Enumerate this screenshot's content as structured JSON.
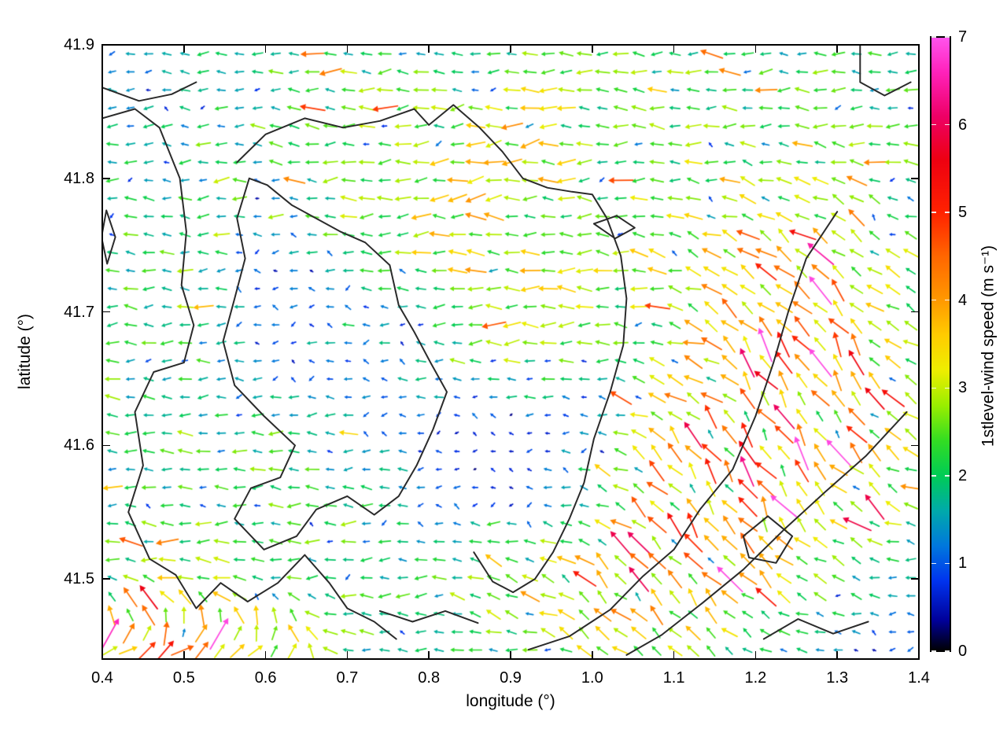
{
  "figure": {
    "background": "#ffffff"
  },
  "chart_data": {
    "type": "quiver",
    "title": "",
    "xlabel": "longitude (°)",
    "ylabel": "latitude (°)",
    "xlim": [
      0.4,
      1.4
    ],
    "ylim": [
      41.44,
      41.9
    ],
    "x_ticks": [
      0.4,
      0.5,
      0.6,
      0.7,
      0.8,
      0.9,
      1.0,
      1.1,
      1.2,
      1.3,
      1.4
    ],
    "x_tick_labels": [
      "0.4",
      "0.5",
      "0.6",
      "0.7",
      "0.8",
      "0.9",
      "1.0",
      "1.1",
      "1.2",
      "1.3",
      "1.4"
    ],
    "y_ticks": [
      41.5,
      41.6,
      41.7,
      41.8,
      41.9
    ],
    "y_tick_labels": [
      "41.5",
      "41.6",
      "41.7",
      "41.8",
      "41.9"
    ],
    "grid": false,
    "frame_color": "#000000",
    "colorbar": {
      "label": "1stlevel-wind speed (m s⁻¹)",
      "min": 0,
      "max": 7,
      "ticks": [
        0,
        1,
        2,
        3,
        4,
        5,
        6,
        7
      ],
      "colormap_stops": [
        {
          "v": 0.0,
          "c": "#000000"
        },
        {
          "v": 0.35,
          "c": "#000099"
        },
        {
          "v": 0.8,
          "c": "#0033ee"
        },
        {
          "v": 1.2,
          "c": "#0077dd"
        },
        {
          "v": 1.6,
          "c": "#00aaaa"
        },
        {
          "v": 2.0,
          "c": "#00cc55"
        },
        {
          "v": 2.4,
          "c": "#33dd22"
        },
        {
          "v": 2.8,
          "c": "#99ee00"
        },
        {
          "v": 3.2,
          "c": "#eeee00"
        },
        {
          "v": 3.6,
          "c": "#ffcc00"
        },
        {
          "v": 4.0,
          "c": "#ff9900"
        },
        {
          "v": 4.5,
          "c": "#ff6600"
        },
        {
          "v": 5.0,
          "c": "#ff2200"
        },
        {
          "v": 5.6,
          "c": "#ee0011"
        },
        {
          "v": 6.1,
          "c": "#ee0066"
        },
        {
          "v": 6.6,
          "c": "#ff22bb"
        },
        {
          "v": 7.0,
          "c": "#ff55ee"
        }
      ]
    },
    "quiver": {
      "ncols": 45,
      "nrows": 34,
      "seed": 1337,
      "speed_grid": [
        [
          1.2,
          1.6,
          2.0,
          2.2,
          2.0,
          2.2,
          2.0,
          2.1,
          1.8,
          2.0,
          1.6
        ],
        [
          1.5,
          1.3,
          2.2,
          2.4,
          2.2,
          3.0,
          2.3,
          2.5,
          2.0,
          2.2,
          2.0
        ],
        [
          1.8,
          2.0,
          1.2,
          2.6,
          3.2,
          2.8,
          2.5,
          2.3,
          2.6,
          2.3,
          2.0
        ],
        [
          1.9,
          2.2,
          0.8,
          1.4,
          2.7,
          3.0,
          2.5,
          3.0,
          3.8,
          3.5,
          2.5
        ],
        [
          2.0,
          2.2,
          1.0,
          0.8,
          2.0,
          2.7,
          2.2,
          2.6,
          4.0,
          3.8,
          2.2
        ],
        [
          1.8,
          2.0,
          2.0,
          1.5,
          0.6,
          0.5,
          1.1,
          3.6,
          4.2,
          3.5,
          2.8
        ],
        [
          1.6,
          2.2,
          2.0,
          2.2,
          1.2,
          0.6,
          2.2,
          4.2,
          3.8,
          3.0,
          2.5
        ],
        [
          2.3,
          2.5,
          2.2,
          2.0,
          1.8,
          3.2,
          3.8,
          3.2,
          3.0,
          2.0,
          1.2
        ],
        [
          4.2,
          4.5,
          3.4,
          2.0,
          1.6,
          1.9,
          2.6,
          2.8,
          2.2,
          1.0,
          0.8
        ]
      ],
      "angle_grid": [
        [
          180,
          180,
          180,
          180,
          180,
          180,
          180,
          180,
          180,
          180,
          180
        ],
        [
          180,
          180,
          180,
          180,
          185,
          190,
          180,
          180,
          180,
          180,
          180
        ],
        [
          180,
          180,
          180,
          180,
          185,
          180,
          180,
          180,
          155,
          150,
          170
        ],
        [
          180,
          180,
          180,
          180,
          180,
          180,
          180,
          160,
          140,
          135,
          160
        ],
        [
          180,
          180,
          180,
          180,
          180,
          180,
          180,
          170,
          125,
          120,
          150
        ],
        [
          180,
          180,
          180,
          180,
          180,
          180,
          170,
          135,
          125,
          130,
          150
        ],
        [
          175,
          180,
          180,
          180,
          180,
          180,
          160,
          125,
          120,
          135,
          160
        ],
        [
          165,
          170,
          180,
          180,
          180,
          150,
          135,
          130,
          140,
          160,
          180
        ],
        [
          25,
          20,
          12,
          170,
          180,
          180,
          150,
          140,
          150,
          170,
          180
        ]
      ]
    },
    "contours": {
      "color": "#2b2b2b",
      "width": 2,
      "polylines": [
        [
          [
            0.4,
            41.868
          ],
          [
            0.445,
            41.858
          ],
          [
            0.485,
            41.863
          ],
          [
            0.515,
            41.872
          ]
        ],
        [
          [
            0.4,
            41.845
          ],
          [
            0.44,
            41.852
          ],
          [
            0.47,
            41.838
          ],
          [
            0.495,
            41.8
          ],
          [
            0.503,
            41.76
          ],
          [
            0.497,
            41.72
          ],
          [
            0.512,
            41.69
          ],
          [
            0.5,
            41.662
          ],
          [
            0.463,
            41.655
          ],
          [
            0.44,
            41.625
          ],
          [
            0.45,
            41.585
          ],
          [
            0.432,
            41.55
          ],
          [
            0.458,
            41.515
          ],
          [
            0.49,
            41.503
          ],
          [
            0.515,
            41.478
          ],
          [
            0.545,
            41.497
          ],
          [
            0.578,
            41.483
          ],
          [
            0.615,
            41.497
          ],
          [
            0.648,
            41.518
          ],
          [
            0.678,
            41.497
          ],
          [
            0.7,
            41.478
          ],
          [
            0.733,
            41.468
          ],
          [
            0.76,
            41.455
          ]
        ],
        [
          [
            0.565,
            41.812
          ],
          [
            0.6,
            41.833
          ],
          [
            0.648,
            41.845
          ],
          [
            0.695,
            41.838
          ],
          [
            0.74,
            41.843
          ],
          [
            0.782,
            41.852
          ],
          [
            0.8,
            41.84
          ],
          [
            0.83,
            41.855
          ],
          [
            0.862,
            41.838
          ],
          [
            0.89,
            41.82
          ],
          [
            0.915,
            41.8
          ],
          [
            0.945,
            41.793
          ],
          [
            0.975,
            41.79
          ],
          [
            1.0,
            41.788
          ],
          [
            1.018,
            41.77
          ],
          [
            1.035,
            41.742
          ],
          [
            1.042,
            41.71
          ],
          [
            1.038,
            41.675
          ],
          [
            1.022,
            41.64
          ],
          [
            1.002,
            41.605
          ],
          [
            0.99,
            41.572
          ],
          [
            0.972,
            41.545
          ],
          [
            0.952,
            41.52
          ],
          [
            0.93,
            41.5
          ],
          [
            0.903,
            41.49
          ],
          [
            0.878,
            41.498
          ],
          [
            0.855,
            41.52
          ]
        ],
        [
          [
            0.58,
            41.8
          ],
          [
            0.565,
            41.77
          ],
          [
            0.575,
            41.74
          ],
          [
            0.562,
            41.71
          ],
          [
            0.548,
            41.678
          ],
          [
            0.562,
            41.645
          ],
          [
            0.598,
            41.622
          ],
          [
            0.636,
            41.6
          ],
          [
            0.618,
            41.576
          ],
          [
            0.582,
            41.568
          ],
          [
            0.562,
            41.545
          ],
          [
            0.598,
            41.522
          ],
          [
            0.638,
            41.532
          ],
          [
            0.662,
            41.552
          ],
          [
            0.7,
            41.562
          ],
          [
            0.733,
            41.548
          ],
          [
            0.763,
            41.562
          ],
          [
            0.785,
            41.585
          ],
          [
            0.805,
            41.612
          ],
          [
            0.822,
            41.64
          ],
          [
            0.802,
            41.662
          ],
          [
            0.782,
            41.685
          ],
          [
            0.763,
            41.705
          ],
          [
            0.752,
            41.735
          ],
          [
            0.722,
            41.752
          ],
          [
            0.692,
            41.76
          ],
          [
            0.662,
            41.77
          ],
          [
            0.632,
            41.78
          ],
          [
            0.602,
            41.795
          ],
          [
            0.58,
            41.8
          ]
        ],
        [
          [
            1.3,
            41.775
          ],
          [
            1.262,
            41.74
          ],
          [
            1.24,
            41.7
          ],
          [
            1.222,
            41.662
          ],
          [
            1.2,
            41.622
          ],
          [
            1.172,
            41.582
          ],
          [
            1.132,
            41.552
          ],
          [
            1.1,
            41.522
          ],
          [
            1.062,
            41.502
          ],
          [
            1.022,
            41.477
          ],
          [
            0.972,
            41.457
          ],
          [
            0.922,
            41.447
          ]
        ],
        [
          [
            1.385,
            41.625
          ],
          [
            1.335,
            41.592
          ],
          [
            1.285,
            41.565
          ],
          [
            1.235,
            41.537
          ],
          [
            1.185,
            41.507
          ],
          [
            1.135,
            41.482
          ],
          [
            1.085,
            41.458
          ],
          [
            1.042,
            41.443
          ]
        ],
        [
          [
            1.185,
            41.532
          ],
          [
            1.215,
            41.547
          ],
          [
            1.245,
            41.532
          ],
          [
            1.225,
            41.512
          ],
          [
            1.192,
            41.516
          ],
          [
            1.185,
            41.532
          ]
        ],
        [
          [
            1.328,
            41.9
          ],
          [
            1.328,
            41.872
          ],
          [
            1.358,
            41.862
          ],
          [
            1.39,
            41.872
          ]
        ],
        [
          [
            1.002,
            41.766
          ],
          [
            1.03,
            41.772
          ],
          [
            1.052,
            41.763
          ],
          [
            1.028,
            41.755
          ],
          [
            1.002,
            41.766
          ]
        ],
        [
          [
            0.405,
            41.776
          ],
          [
            0.416,
            41.756
          ],
          [
            0.406,
            41.736
          ],
          [
            0.399,
            41.756
          ],
          [
            0.405,
            41.776
          ]
        ],
        [
          [
            0.74,
            41.476
          ],
          [
            0.78,
            41.468
          ],
          [
            0.82,
            41.476
          ],
          [
            0.86,
            41.467
          ]
        ],
        [
          [
            1.21,
            41.455
          ],
          [
            1.252,
            41.47
          ],
          [
            1.295,
            41.459
          ],
          [
            1.338,
            41.468
          ]
        ]
      ]
    }
  }
}
